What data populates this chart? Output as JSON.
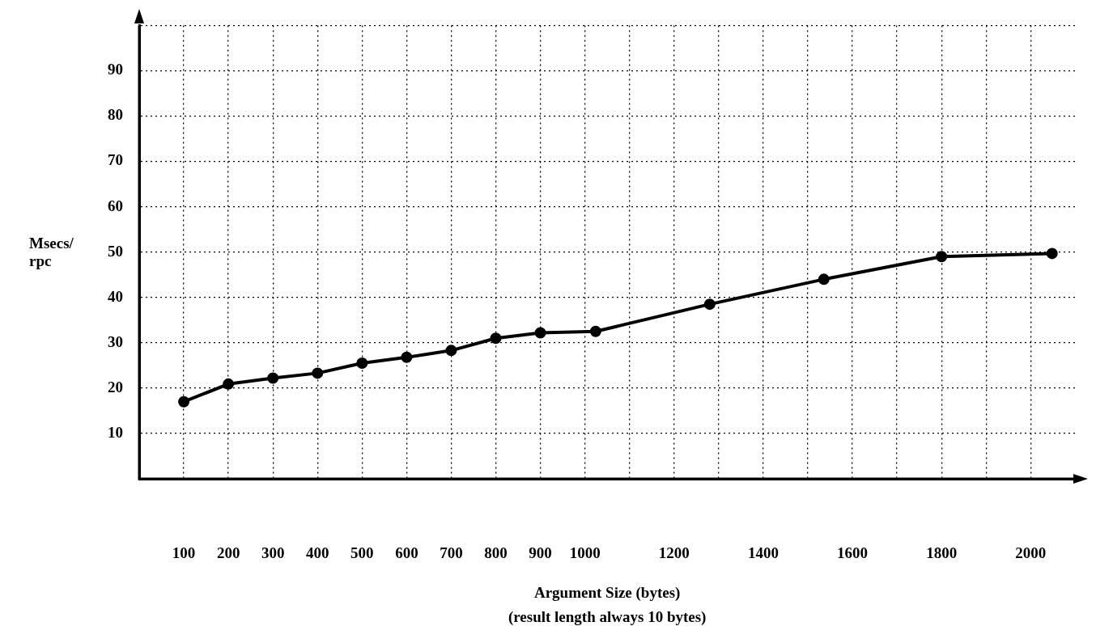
{
  "chart_data": {
    "type": "line",
    "xlabel": "Argument Size (bytes)",
    "ylabel": "Msecs/ rpc",
    "annotations": [
      "(result length always 10 bytes)"
    ],
    "x": [
      100,
      200,
      300,
      400,
      500,
      600,
      700,
      800,
      900,
      1024,
      1280,
      1536,
      1800,
      2048
    ],
    "values": [
      17.0,
      20.9,
      22.2,
      23.3,
      25.5,
      26.8,
      28.3,
      31.0,
      32.2,
      32.5,
      38.5,
      44.0,
      49.0,
      49.7
    ],
    "color": "#000000",
    "marker": "circle",
    "line_style": "solid",
    "grid": true,
    "legend": false,
    "xlim": [
      0,
      2100
    ],
    "ylim": [
      0,
      100
    ],
    "xticks": [
      100,
      200,
      300,
      400,
      500,
      600,
      700,
      800,
      900,
      1000,
      {
        "value": 1100,
        "label": null
      },
      1200,
      {
        "value": 1300,
        "label": null
      },
      1400,
      {
        "value": 1500,
        "label": null
      },
      1600,
      {
        "value": 1700,
        "label": null
      },
      1800,
      {
        "value": 1900,
        "label": null
      },
      2000
    ],
    "yticks": [
      10,
      20,
      30,
      40,
      50,
      60,
      70,
      80,
      90,
      {
        "value": 100,
        "label": null
      }
    ]
  }
}
